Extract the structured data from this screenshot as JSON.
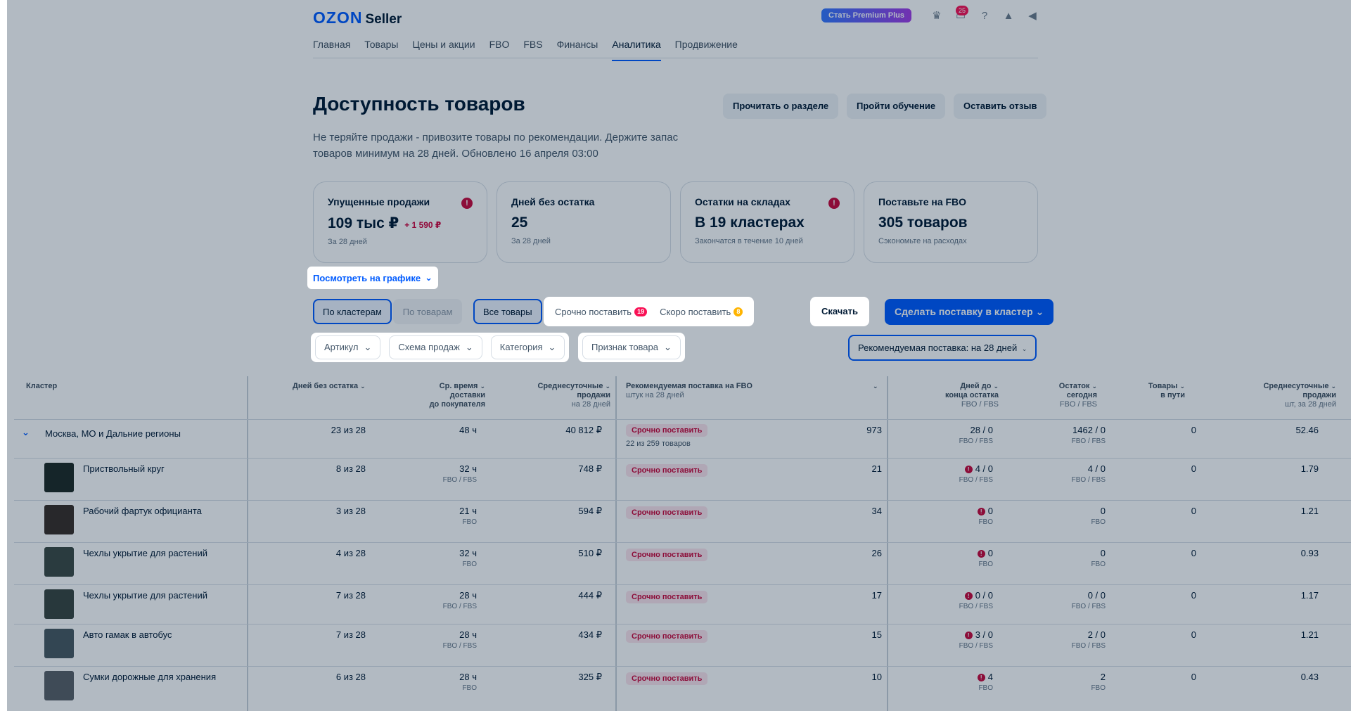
{
  "header": {
    "brand": "OZON",
    "brand_suffix": "Seller",
    "premium_label": "Стать Premium Plus",
    "chat_count": "25"
  },
  "nav": [
    "Главная",
    "Товары",
    "Цены и акции",
    "FBO",
    "FBS",
    "Финансы",
    "Аналитика",
    "Продвижение"
  ],
  "page": {
    "title": "Доступность товаров",
    "description": "Не теряйте продажи - привозите товары по рекомендации. Держите запас товаров минимум на 28 дней. Обновлено 16 апреля 03:00",
    "btn_read": "Прочитать о разделе",
    "btn_learn": "Пройти обучение",
    "btn_feedback": "Оставить отзыв"
  },
  "cards": [
    {
      "title": "Упущенные продажи",
      "value": "109 тыс ₽",
      "delta": "+ 1 590 ₽",
      "sub": "За 28 дней"
    },
    {
      "title": "Дней без остатка",
      "value": "25",
      "delta": "",
      "sub": "За 28 дней"
    },
    {
      "title": "Остатки на складах",
      "value": "В 19 кластерах",
      "delta": "",
      "sub": "Закончатся в течение 10 дней"
    },
    {
      "title": "Поставьте на FBO",
      "value": "305 товаров",
      "delta": "",
      "sub": "Сэкономьте на расходах"
    }
  ],
  "controls": {
    "chart_link": "Посмотреть на графике",
    "by_clusters": "По кластерам",
    "by_products": "По товарам",
    "all_products": "Все товары",
    "urgent": "Срочно поставить",
    "urgent_count": "19",
    "soon": "Скоро поставить",
    "soon_count": "8",
    "download": "Скачать",
    "make_supply": "Сделать поставку в кластер",
    "filter_article": "Артикул",
    "filter_scheme": "Схема продаж",
    "filter_category": "Категория",
    "filter_attr": "Признак товара",
    "rec_select": "Рекомендуемая поставка: на 28 дней"
  },
  "table": {
    "headers": {
      "cluster": "Кластер",
      "days_without": "Дней без остатка",
      "delivery": [
        "Ср. время",
        "доставки",
        "до покупателя"
      ],
      "avg_sales": [
        "Среднесуточные",
        "продажи",
        "на 28 дней"
      ],
      "rec_supply": "Рекомендуемая поставка на FBO",
      "rec_supply_sub": "штук на 28 дней",
      "days_to_end": [
        "Дней до",
        "конца остатка",
        "FBO / FBS"
      ],
      "stock_today": [
        "Остаток",
        "сегодня",
        "FBO / FBS"
      ],
      "in_transit": [
        "Товары",
        "в пути"
      ],
      "avg_sales_units": [
        "Среднесуточные",
        "продажи",
        "шт, за 28 дней"
      ]
    },
    "cluster_row": {
      "name": "Москва, МО и Дальние регионы",
      "days": "23 из 28",
      "delivery": "48 ч",
      "sales": "40 812 ₽",
      "tag": "Срочно поставить",
      "tag_sub": "22 из 259 товаров",
      "qty": "973",
      "days_to_end": "28 / 0",
      "days_to_end_sub": "FBO / FBS",
      "stock": "1462 / 0",
      "stock_sub": "FBO / FBS",
      "transit": "0",
      "units": "52.46"
    },
    "rows": [
      {
        "name": "Приствольный круг",
        "days": "8 из 28",
        "delivery": "32 ч",
        "delivery_sub": "FBO / FBS",
        "sales": "748 ₽",
        "tag": "Срочно поставить",
        "qty": "21",
        "days_to_end": "4 / 0",
        "days_to_end_sub": "FBO / FBS",
        "stock": "4 / 0",
        "stock_sub": "FBO / FBS",
        "transit": "0",
        "units": "1.79"
      },
      {
        "name": "Рабочий фартук официанта",
        "days": "3 из 28",
        "delivery": "21 ч",
        "delivery_sub": "FBO",
        "sales": "594 ₽",
        "tag": "Срочно поставить",
        "qty": "34",
        "days_to_end": "0",
        "days_to_end_sub": "FBO",
        "stock": "0",
        "stock_sub": "FBO",
        "transit": "0",
        "units": "1.21"
      },
      {
        "name": "Чехлы укрытие для растений",
        "days": "4 из 28",
        "delivery": "32 ч",
        "delivery_sub": "FBO",
        "sales": "510 ₽",
        "tag": "Срочно поставить",
        "qty": "26",
        "days_to_end": "0",
        "days_to_end_sub": "FBO",
        "stock": "0",
        "stock_sub": "FBO",
        "transit": "0",
        "units": "0.93"
      },
      {
        "name": "Чехлы укрытие для растений",
        "days": "7 из 28",
        "delivery": "28 ч",
        "delivery_sub": "FBO / FBS",
        "sales": "444 ₽",
        "tag": "Срочно поставить",
        "qty": "17",
        "days_to_end": "0 / 0",
        "days_to_end_sub": "FBO / FBS",
        "stock": "0 / 0",
        "stock_sub": "FBO / FBS",
        "transit": "0",
        "units": "1.17"
      },
      {
        "name": "Авто гамак в автобус",
        "days": "7 из 28",
        "delivery": "28 ч",
        "delivery_sub": "FBO / FBS",
        "sales": "434 ₽",
        "tag": "Срочно поставить",
        "qty": "15",
        "days_to_end": "3 / 0",
        "days_to_end_sub": "FBO / FBS",
        "stock": "2 / 0",
        "stock_sub": "FBO / FBS",
        "transit": "0",
        "units": "1.21"
      },
      {
        "name": "Сумки дорожные для хранения",
        "days": "6 из 28",
        "delivery": "28 ч",
        "delivery_sub": "FBO",
        "sales": "325 ₽",
        "tag": "Срочно поставить",
        "qty": "10",
        "days_to_end": "4",
        "days_to_end_sub": "FBO",
        "stock": "2",
        "stock_sub": "FBO",
        "transit": "0",
        "units": "0.43"
      }
    ]
  },
  "colors": {
    "accent": "#005bff",
    "danger": "#c9083c",
    "warn": "#ffb400"
  }
}
